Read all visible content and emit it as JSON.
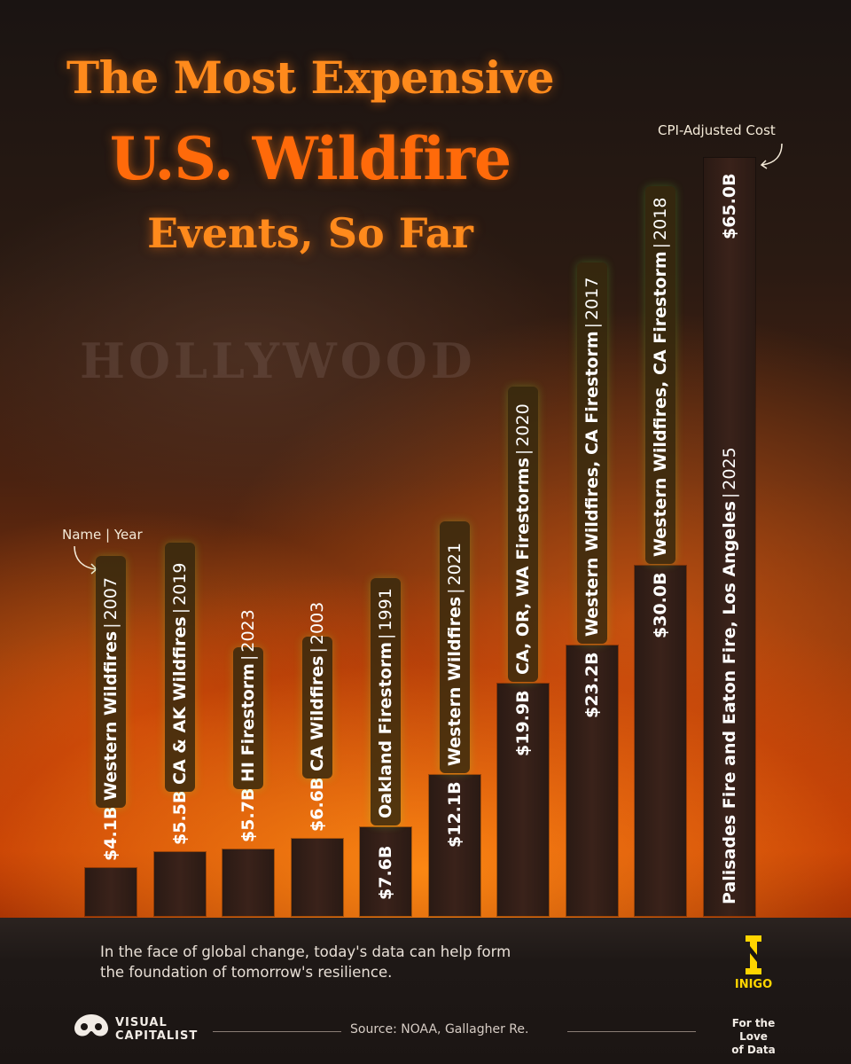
{
  "title": {
    "line1": "The Most Expensive",
    "line2": "U.S. Wildfire",
    "line3": "Events, So Far"
  },
  "background_sign": "HOLLYWOOD",
  "annotations": {
    "cost": "CPI-Adjusted Cost",
    "name_year": "Name",
    "name_year_sep": "|",
    "name_year_year": "Year"
  },
  "chart_data": {
    "type": "bar",
    "title": "The Most Expensive U.S. Wildfire Events, So Far",
    "unit": "CPI-Adjusted Cost",
    "categories": [
      "Western Wildfires",
      "CA & AK Wildfires",
      "HI Firestorm",
      "CA Wildfires",
      "Oakland Firestorm",
      "Western Wildfires",
      "CA, OR, WA Firestorms",
      "Western Wildfires, CA Firestorm",
      "Western Wildfires, CA Firestorm",
      "Palisades Fire and Eaton Fire, Los Angeles"
    ],
    "years": [
      "2007",
      "2019",
      "2023",
      "2003",
      "1991",
      "2021",
      "2020",
      "2017",
      "2018",
      "2025"
    ],
    "values": [
      4.1,
      5.5,
      5.7,
      6.6,
      7.6,
      12.1,
      19.9,
      23.2,
      30.0,
      65.0
    ],
    "value_labels": [
      "$4.1B",
      "$5.5B",
      "$5.7B",
      "$6.6B",
      "$7.6B",
      "$12.1B",
      "$19.9B",
      "$23.2B",
      "$30.0B",
      "$65.0B"
    ],
    "ylim": [
      0,
      65
    ]
  },
  "footnote": "In the face of global change, today's data can help form the foundation of tomorrow's resilience.",
  "branding": {
    "vc_line1": "VISUAL",
    "vc_line2": "CAPITALIST",
    "source": "Source: NOAA, Gallagher Re.",
    "inigo": "INIGO",
    "inigo_tag1": "For the Love",
    "inigo_tag2": "of Data"
  },
  "colors": {
    "title": "#ff8a1c",
    "bar": "#2e1d16",
    "pill": "#372a0e",
    "inigo": "#ffd500"
  }
}
